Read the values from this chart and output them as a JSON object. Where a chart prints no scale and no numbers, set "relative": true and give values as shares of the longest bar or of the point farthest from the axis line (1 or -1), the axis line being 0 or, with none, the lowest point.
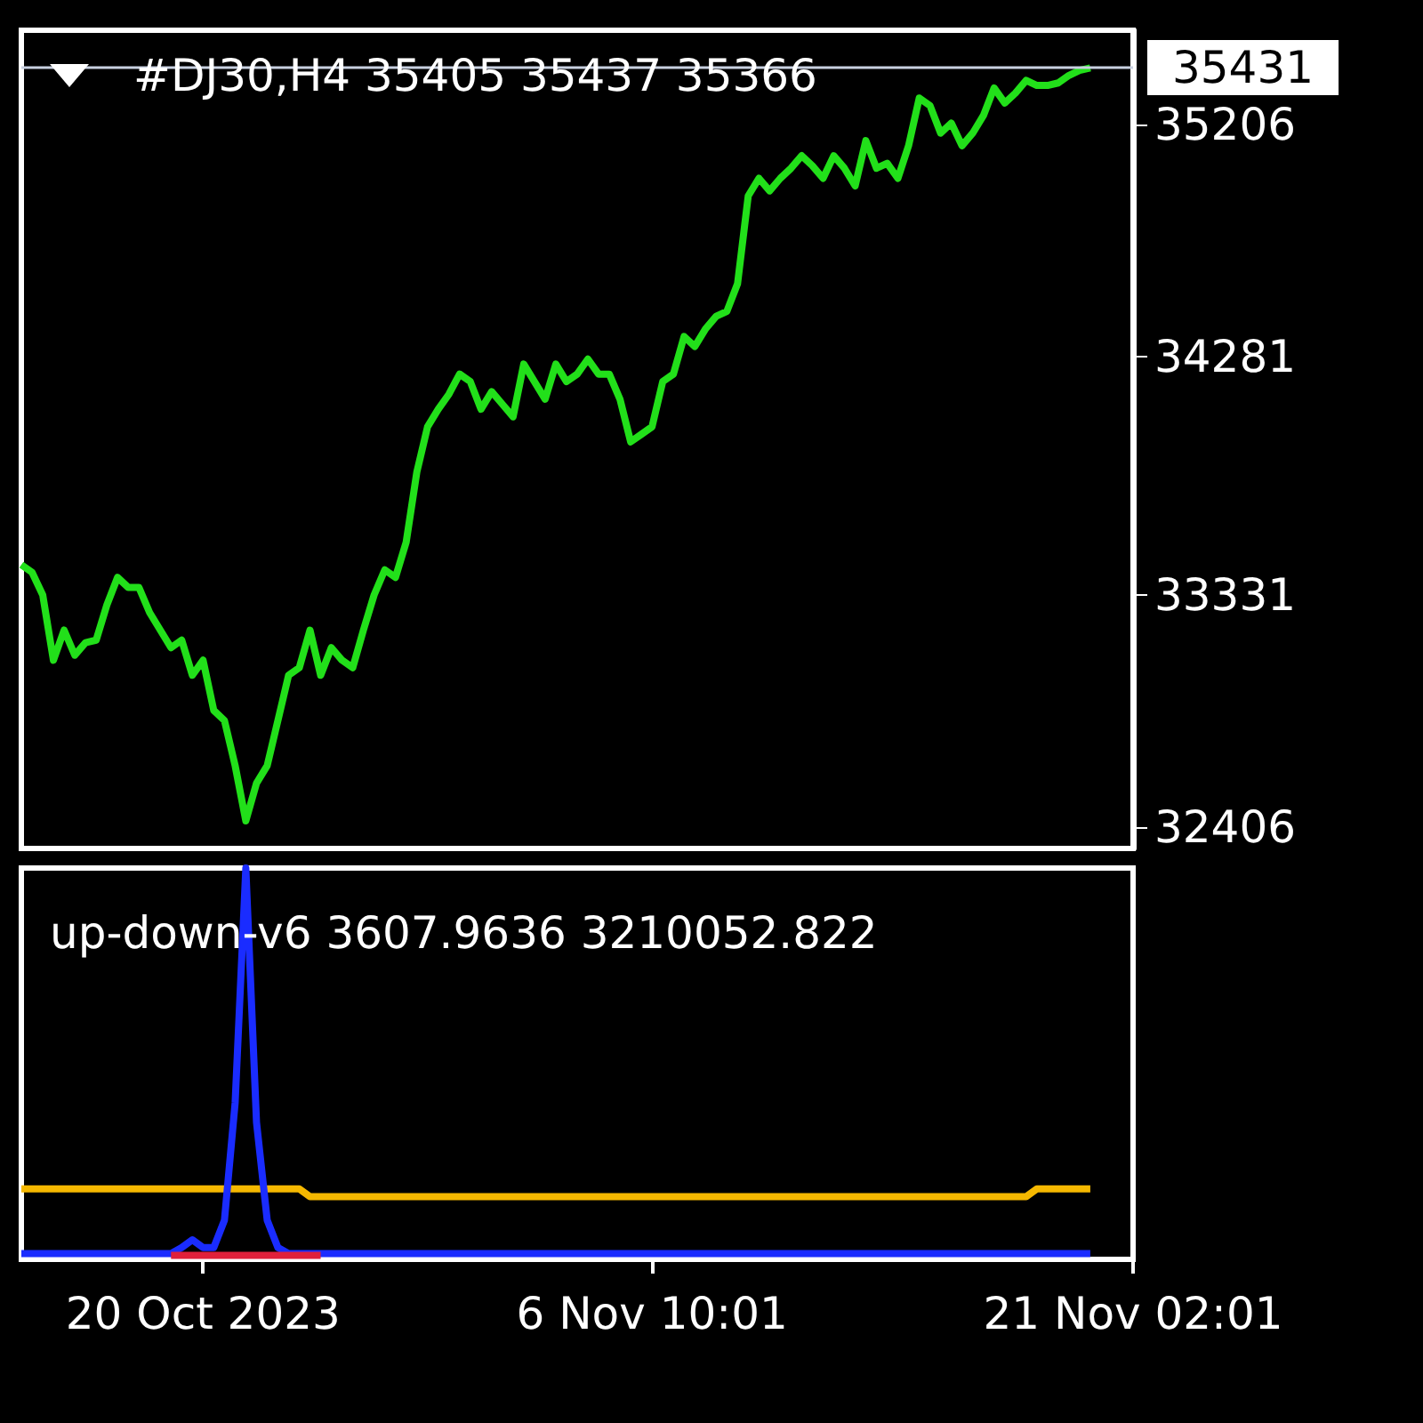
{
  "chart_data": [
    {
      "type": "line",
      "title": "#DJ30,H4  35405 35437 35366",
      "marker": "none",
      "tick_labels": "y",
      "categories": [
        null,
        null,
        null,
        null,
        null,
        null,
        null,
        null,
        null,
        null,
        null,
        null,
        null,
        null,
        null,
        null,
        null,
        null,
        null,
        null,
        null,
        null,
        null,
        null,
        null,
        null,
        null,
        null,
        null,
        null,
        null,
        null,
        null,
        null,
        null,
        null,
        null,
        null,
        null,
        null,
        null,
        null,
        null,
        null,
        null,
        null,
        null,
        null,
        null,
        null,
        null,
        null,
        null,
        null,
        null,
        null,
        null,
        null,
        null,
        null,
        null,
        null,
        null,
        null,
        null,
        null,
        null,
        null,
        null,
        null,
        null,
        null,
        null,
        null,
        null,
        null,
        null,
        null,
        null,
        null,
        null,
        null,
        null,
        null,
        null,
        null,
        null,
        null,
        null,
        null,
        null,
        null,
        null,
        null,
        null,
        null,
        null,
        null,
        null,
        null,
        null,
        null,
        null,
        null,
        null
      ],
      "ylim": [
        32320,
        35580
      ],
      "yticks": [
        32406,
        33331,
        34281,
        35206
      ],
      "ref_lines": [
        {
          "axis": "y",
          "value": 35431,
          "label": "35431",
          "color": "#c8d0e0"
        }
      ],
      "series": [
        {
          "color": "#22e01a",
          "values": [
            33450,
            33420,
            33330,
            33070,
            33190,
            33090,
            33140,
            33150,
            33290,
            33400,
            33360,
            33360,
            33260,
            33190,
            33120,
            33150,
            33010,
            33070,
            32870,
            32830,
            32650,
            32430,
            32580,
            32650,
            32830,
            33010,
            33040,
            33190,
            33010,
            33120,
            33070,
            33040,
            33190,
            33330,
            33430,
            33400,
            33540,
            33820,
            34000,
            34070,
            34130,
            34210,
            34180,
            34070,
            34140,
            34090,
            34040,
            34250,
            34180,
            34110,
            34250,
            34180,
            34210,
            34270,
            34210,
            34210,
            34110,
            33940,
            33970,
            34000,
            34180,
            34210,
            34360,
            34320,
            34390,
            34440,
            34460,
            34570,
            34920,
            34990,
            34940,
            34990,
            35030,
            35080,
            35040,
            34990,
            35080,
            35030,
            34960,
            35140,
            35030,
            35050,
            34990,
            35120,
            35310,
            35280,
            35170,
            35210,
            35120,
            35170,
            35240,
            35350,
            35290,
            35330,
            35380,
            35360,
            35360,
            35370,
            35400,
            35420,
            35430,
            null,
            null,
            null,
            null
          ]
        }
      ]
    },
    {
      "type": "line",
      "title": "up-down-v6 3607.9636 3210052.822",
      "marker": "none",
      "relative": true,
      "tick_labels": "x",
      "categories": [
        null,
        null,
        null,
        null,
        null,
        null,
        null,
        null,
        null,
        null,
        null,
        null,
        null,
        null,
        null,
        null,
        null,
        "20 Oct 2023",
        null,
        null,
        null,
        null,
        null,
        null,
        null,
        null,
        null,
        null,
        null,
        null,
        null,
        null,
        null,
        null,
        null,
        null,
        null,
        null,
        null,
        null,
        null,
        null,
        null,
        null,
        null,
        null,
        null,
        null,
        null,
        null,
        null,
        null,
        null,
        null,
        null,
        null,
        null,
        null,
        null,
        "6 Nov 10:01",
        null,
        null,
        null,
        null,
        null,
        null,
        null,
        null,
        null,
        null,
        null,
        null,
        null,
        null,
        null,
        null,
        null,
        null,
        null,
        null,
        null,
        null,
        null,
        null,
        null,
        null,
        null,
        null,
        null,
        null,
        null,
        null,
        null,
        null,
        null,
        null,
        null,
        null,
        null,
        null,
        null,
        null,
        null,
        null,
        "21 Nov 02:01"
      ],
      "series": [
        {
          "color": "#f5b800",
          "values": [
            0.18,
            0.18,
            0.18,
            0.18,
            0.18,
            0.18,
            0.18,
            0.18,
            0.18,
            0.18,
            0.18,
            0.18,
            0.18,
            0.18,
            0.18,
            0.18,
            0.18,
            0.18,
            0.18,
            0.18,
            0.18,
            0.18,
            0.18,
            0.18,
            0.18,
            0.18,
            0.18,
            0.16,
            0.16,
            0.16,
            0.16,
            0.16,
            0.16,
            0.16,
            0.16,
            0.16,
            0.16,
            0.16,
            0.16,
            0.16,
            0.16,
            0.16,
            0.16,
            0.16,
            0.16,
            0.16,
            0.16,
            0.16,
            0.16,
            0.16,
            0.16,
            0.16,
            0.16,
            0.16,
            0.16,
            0.16,
            0.16,
            0.16,
            0.16,
            0.16,
            0.16,
            0.16,
            0.16,
            0.16,
            0.16,
            0.16,
            0.16,
            0.16,
            0.16,
            0.16,
            0.16,
            0.16,
            0.16,
            0.16,
            0.16,
            0.16,
            0.16,
            0.16,
            0.16,
            0.16,
            0.16,
            0.16,
            0.16,
            0.16,
            0.16,
            0.16,
            0.16,
            0.16,
            0.16,
            0.16,
            0.16,
            0.16,
            0.16,
            0.16,
            0.16,
            0.18,
            0.18,
            0.18,
            0.18,
            0.18,
            0.18,
            null,
            null,
            null,
            null
          ]
        },
        {
          "color": "#1a2cff",
          "values": [
            0.015,
            0.015,
            0.015,
            0.015,
            0.015,
            0.015,
            0.015,
            0.015,
            0.015,
            0.015,
            0.015,
            0.015,
            0.015,
            0.015,
            0.015,
            0.03,
            0.05,
            0.03,
            0.03,
            0.1,
            0.4,
            1,
            0.35,
            0.1,
            0.03,
            0.015,
            0.015,
            0.015,
            0.015,
            0.015,
            0.015,
            0.015,
            0.015,
            0.015,
            0.015,
            0.015,
            0.015,
            0.015,
            0.015,
            0.015,
            0.015,
            0.015,
            0.015,
            0.015,
            0.015,
            0.015,
            0.015,
            0.015,
            0.015,
            0.015,
            0.015,
            0.015,
            0.015,
            0.015,
            0.015,
            0.015,
            0.015,
            0.015,
            0.015,
            0.015,
            0.015,
            0.015,
            0.015,
            0.015,
            0.015,
            0.015,
            0.015,
            0.015,
            0.015,
            0.015,
            0.015,
            0.015,
            0.015,
            0.015,
            0.015,
            0.015,
            0.015,
            0.015,
            0.015,
            0.015,
            0.015,
            0.015,
            0.015,
            0.015,
            0.015,
            0.015,
            0.015,
            0.015,
            0.015,
            0.015,
            0.015,
            0.015,
            0.015,
            0.015,
            0.015,
            0.015,
            0.015,
            0.015,
            0.015,
            0.015,
            0.015,
            null,
            null,
            null,
            null
          ]
        },
        {
          "color": "#e0203a",
          "values": [
            null,
            null,
            null,
            null,
            null,
            null,
            null,
            null,
            null,
            null,
            null,
            null,
            null,
            null,
            0.01,
            0.01,
            0.01,
            0.01,
            0.01,
            0.01,
            0.01,
            0.01,
            0.01,
            0.01,
            0.01,
            0.01,
            0.01,
            0.01,
            0.01,
            null,
            null,
            null,
            null,
            null,
            null,
            null,
            null,
            null,
            null,
            null,
            null,
            null,
            null,
            null,
            null,
            null,
            null,
            null,
            null,
            null,
            null,
            null,
            null,
            null,
            null,
            null,
            null,
            null,
            null,
            null,
            null,
            null,
            null,
            null,
            null,
            null,
            null,
            null,
            null,
            null,
            null,
            null,
            null,
            null,
            null,
            null,
            null,
            null,
            null,
            null,
            null,
            null,
            null,
            null,
            null,
            null,
            null,
            null,
            null,
            null,
            null,
            null,
            null,
            null,
            null,
            null,
            null,
            null,
            null,
            null,
            null,
            null,
            null,
            null,
            null
          ]
        }
      ]
    }
  ]
}
